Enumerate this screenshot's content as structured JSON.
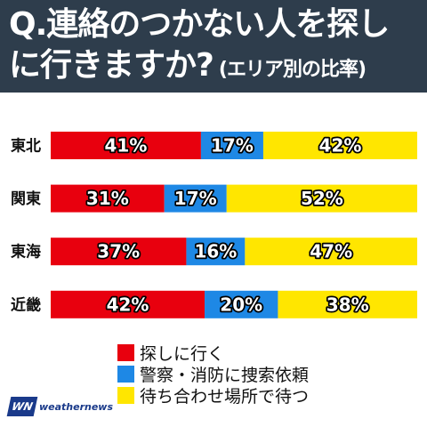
{
  "title": {
    "line1": "Q.連絡のつかない人を探し",
    "line2": "に行きますか?",
    "subtitle": "(エリア別の比率)"
  },
  "chart_data": {
    "type": "bar",
    "orientation": "horizontal",
    "stacked": true,
    "percent": true,
    "categories": [
      "東北",
      "関東",
      "東海",
      "近畿"
    ],
    "series": [
      {
        "name": "探しに行く",
        "color": "#e8000e",
        "values": [
          41,
          31,
          37,
          42
        ]
      },
      {
        "name": "警察・消防に捜索依頼",
        "color": "#1e88e5",
        "values": [
          17,
          17,
          16,
          20
        ]
      },
      {
        "name": "待ち合わせ場所で待つ",
        "color": "#ffe600",
        "values": [
          42,
          52,
          47,
          38
        ]
      }
    ],
    "xlim": [
      0,
      100
    ],
    "label_format": "{v}%"
  },
  "legend": {
    "items": [
      {
        "label": "探しに行く",
        "color": "#e8000e"
      },
      {
        "label": "警察・消防に捜索依頼",
        "color": "#1e88e5"
      },
      {
        "label": "待ち合わせ場所で待つ",
        "color": "#ffe600"
      }
    ]
  },
  "logo": {
    "mark": "WN",
    "text": "weathernews"
  }
}
